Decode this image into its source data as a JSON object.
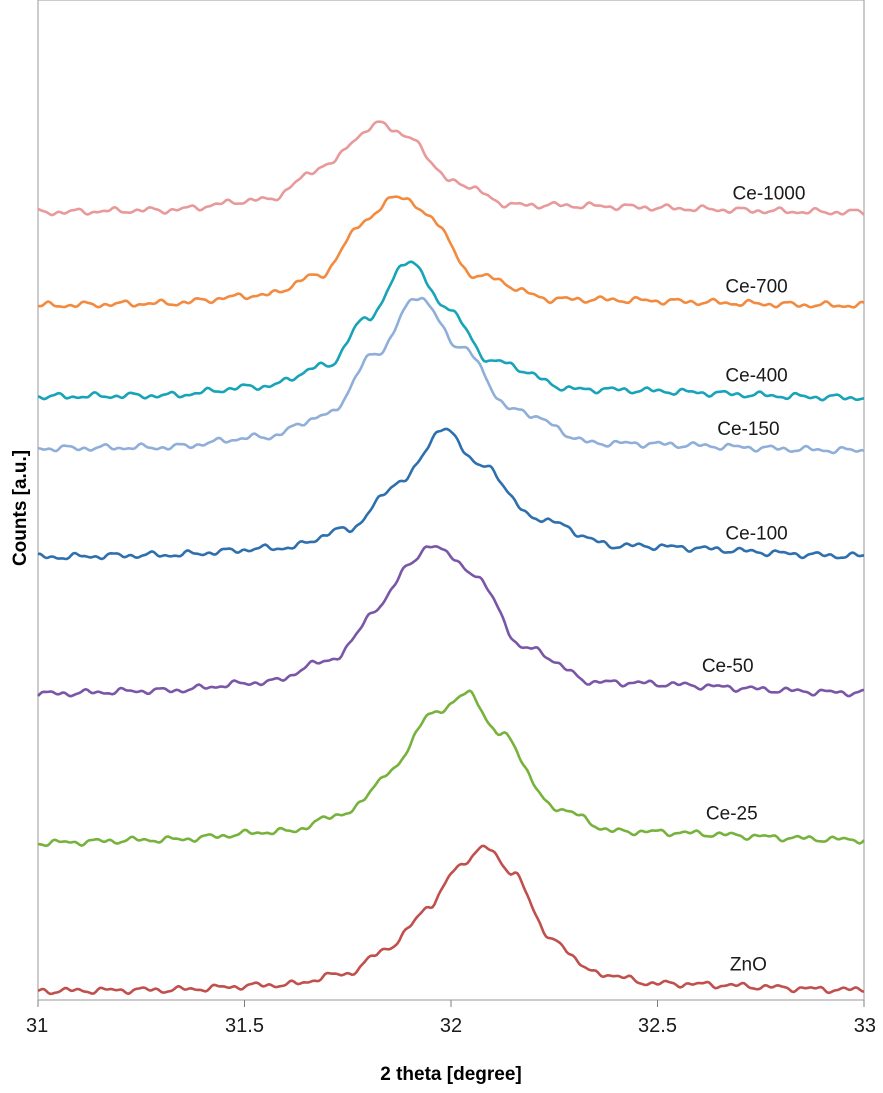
{
  "chart_data": {
    "type": "line",
    "title": "",
    "xlabel": "2 theta [degree]",
    "ylabel": "Counts [a.u.]",
    "xlim": [
      31,
      33
    ],
    "x_ticks": [
      "31",
      "31.5",
      "32",
      "32.5",
      "33"
    ],
    "grid": false,
    "legend": "none (series labelled directly on curves)",
    "series": [
      {
        "name": "ZnO",
        "color": "#c0504d",
        "baseline": 0.0,
        "peak_x": 32.09,
        "peak_height": 14.2,
        "points": [
          [
            31,
            0.3
          ],
          [
            31.3,
            0.4
          ],
          [
            31.6,
            0.9
          ],
          [
            31.75,
            2.0
          ],
          [
            31.85,
            4.5
          ],
          [
            31.95,
            8.5
          ],
          [
            32.02,
            12.5
          ],
          [
            32.09,
            14.2
          ],
          [
            32.15,
            11.5
          ],
          [
            32.25,
            5.0
          ],
          [
            32.35,
            2.0
          ],
          [
            32.5,
            1.0
          ],
          [
            33,
            0.4
          ]
        ]
      },
      {
        "name": "Ce-25",
        "color": "#77b23c",
        "baseline": 14.5,
        "peak_x": 32.04,
        "peak_height": 14.5,
        "points": [
          [
            31,
            0.1
          ],
          [
            31.3,
            0.4
          ],
          [
            31.6,
            1.2
          ],
          [
            31.75,
            3.0
          ],
          [
            31.85,
            6.8
          ],
          [
            31.95,
            12.4
          ],
          [
            32.04,
            14.5
          ],
          [
            32.12,
            10.6
          ],
          [
            32.25,
            3.5
          ],
          [
            32.4,
            1.2
          ],
          [
            33,
            0.4
          ]
        ]
      },
      {
        "name": "Ce-50",
        "color": "#7a56a6",
        "baseline": 28.9,
        "peak_x": 31.96,
        "peak_height": 14.5,
        "points": [
          [
            31,
            0.1
          ],
          [
            31.3,
            0.4
          ],
          [
            31.55,
            1.2
          ],
          [
            31.72,
            3.5
          ],
          [
            31.82,
            8.2
          ],
          [
            31.9,
            12.7
          ],
          [
            31.96,
            14.5
          ],
          [
            32.05,
            11.8
          ],
          [
            32.18,
            4.5
          ],
          [
            32.35,
            1.2
          ],
          [
            33,
            0.2
          ]
        ]
      },
      {
        "name": "Ce-100",
        "color": "#2e6fae",
        "baseline": 42.1,
        "peak_x": 31.98,
        "peak_height": 12.4,
        "points": [
          [
            31,
            0.1
          ],
          [
            31.3,
            0.3
          ],
          [
            31.6,
            1.0
          ],
          [
            31.75,
            2.8
          ],
          [
            31.88,
            7.4
          ],
          [
            31.98,
            12.4
          ],
          [
            32.08,
            8.8
          ],
          [
            32.2,
            3.9
          ],
          [
            32.4,
            1.2
          ],
          [
            33,
            0.2
          ]
        ]
      },
      {
        "name": "Ce-150",
        "color": "#8faed9",
        "baseline": 52.4,
        "peak_x": 31.92,
        "peak_height": 15.0,
        "points": [
          [
            31,
            0.3
          ],
          [
            31.3,
            0.4
          ],
          [
            31.55,
            1.4
          ],
          [
            31.7,
            3.5
          ],
          [
            31.82,
            9.5
          ],
          [
            31.92,
            15.0
          ],
          [
            32.02,
            10.2
          ],
          [
            32.15,
            4.0
          ],
          [
            32.35,
            0.8
          ],
          [
            33,
            0.1
          ]
        ]
      },
      {
        "name": "Ce-400",
        "color": "#17a3b8",
        "baseline": 57.5,
        "peak_x": 31.9,
        "peak_height": 13.4,
        "points": [
          [
            31,
            0.2
          ],
          [
            31.3,
            0.3
          ],
          [
            31.55,
            1.2
          ],
          [
            31.7,
            3.2
          ],
          [
            31.8,
            7.9
          ],
          [
            31.9,
            13.4
          ],
          [
            31.98,
            9.1
          ],
          [
            32.1,
            3.6
          ],
          [
            32.3,
            0.9
          ],
          [
            33,
            0.1
          ]
        ]
      },
      {
        "name": "Ce-700",
        "color": "#f28a3f",
        "baseline": 66.4,
        "peak_x": 31.87,
        "peak_height": 10.8,
        "points": [
          [
            31,
            0.1
          ],
          [
            31.3,
            0.3
          ],
          [
            31.55,
            1.1
          ],
          [
            31.68,
            3.0
          ],
          [
            31.8,
            8.5
          ],
          [
            31.87,
            10.8
          ],
          [
            31.95,
            8.7
          ],
          [
            32.05,
            3.1
          ],
          [
            32.25,
            0.7
          ],
          [
            33,
            0.1
          ]
        ]
      },
      {
        "name": "Ce-1000",
        "color": "#e89a9a",
        "baseline": 75.4,
        "peak_x": 31.83,
        "peak_height": 8.8,
        "points": [
          [
            31,
            0.1
          ],
          [
            31.3,
            0.3
          ],
          [
            31.55,
            1.3
          ],
          [
            31.7,
            4.6
          ],
          [
            31.78,
            7.5
          ],
          [
            31.83,
            8.8
          ],
          [
            31.9,
            7.2
          ],
          [
            32.0,
            3.1
          ],
          [
            32.15,
            0.8
          ],
          [
            33,
            0.1
          ]
        ]
      }
    ]
  }
}
